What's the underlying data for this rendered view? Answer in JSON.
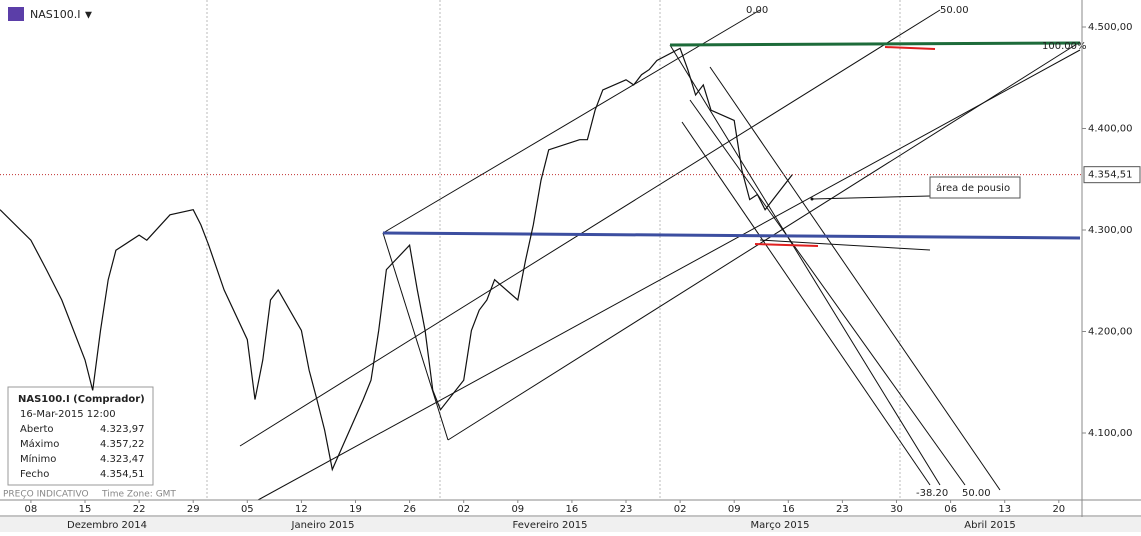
{
  "chart_data": {
    "type": "line",
    "symbol": "NAS100.I",
    "x": [
      "2014-12-04",
      "2014-12-08",
      "2014-12-10",
      "2014-12-12",
      "2014-12-15",
      "2014-12-16",
      "2014-12-17",
      "2014-12-18",
      "2014-12-19",
      "2014-12-22",
      "2014-12-23",
      "2014-12-26",
      "2014-12-29",
      "2014-12-30",
      "2014-12-31",
      "2015-01-02",
      "2015-01-05",
      "2015-01-06",
      "2015-01-07",
      "2015-01-08",
      "2015-01-09",
      "2015-01-12",
      "2015-01-13",
      "2015-01-14",
      "2015-01-15",
      "2015-01-16",
      "2015-01-20",
      "2015-01-21",
      "2015-01-22",
      "2015-01-23",
      "2015-01-26",
      "2015-01-27",
      "2015-01-28",
      "2015-01-29",
      "2015-01-30",
      "2015-02-02",
      "2015-02-03",
      "2015-02-04",
      "2015-02-05",
      "2015-02-06",
      "2015-02-09",
      "2015-02-10",
      "2015-02-11",
      "2015-02-12",
      "2015-02-13",
      "2015-02-17",
      "2015-02-18",
      "2015-02-19",
      "2015-02-20",
      "2015-02-23",
      "2015-02-24",
      "2015-02-25",
      "2015-02-26",
      "2015-02-27",
      "2015-03-02",
      "2015-03-03",
      "2015-03-04",
      "2015-03-05",
      "2015-03-06",
      "2015-03-09",
      "2015-03-10",
      "2015-03-11",
      "2015-03-12",
      "2015-03-13",
      "2015-03-16 12:00"
    ],
    "series": [
      {
        "color": "#111111",
        "values": [
          4320,
          4290,
          4261,
          4231,
          4172,
          4142,
          4201,
          4251,
          4280,
          4295,
          4290,
          4315,
          4320,
          4305,
          4285,
          4241,
          4192,
          4133,
          4172,
          4231,
          4241,
          4201,
          4162,
          4133,
          4103,
          4064,
          4133,
          4152,
          4201,
          4261,
          4285,
          4241,
          4201,
          4142,
          4123,
          4152,
          4201,
          4221,
          4231,
          4251,
          4231,
          4270,
          4305,
          4349,
          4379,
          4389,
          4389,
          4418,
          4438,
          4448,
          4443,
          4453,
          4458,
          4467,
          4479,
          4458,
          4433,
          4443,
          4418,
          4408,
          4359,
          4330,
          4335,
          4320,
          4354.51
        ]
      }
    ],
    "xlim": [
      "2014-12-04",
      "2015-04-23"
    ],
    "xticks": [
      {
        "value": "2014-12-08",
        "label": "08"
      },
      {
        "value": "2014-12-15",
        "label": "15"
      },
      {
        "value": "2014-12-22",
        "label": "22"
      },
      {
        "value": "2014-12-29",
        "label": "29"
      },
      {
        "value": "2015-01-05",
        "label": "05"
      },
      {
        "value": "2015-01-12",
        "label": "12"
      },
      {
        "value": "2015-01-19",
        "label": "19"
      },
      {
        "value": "2015-01-26",
        "label": "26"
      },
      {
        "value": "2015-02-02",
        "label": "02"
      },
      {
        "value": "2015-02-09",
        "label": "09"
      },
      {
        "value": "2015-02-16",
        "label": "16"
      },
      {
        "value": "2015-02-23",
        "label": "23"
      },
      {
        "value": "2015-03-02",
        "label": "02"
      },
      {
        "value": "2015-03-09",
        "label": "09"
      },
      {
        "value": "2015-03-16",
        "label": "16"
      },
      {
        "value": "2015-03-23",
        "label": "23"
      },
      {
        "value": "2015-03-30",
        "label": "30"
      },
      {
        "value": "2015-04-06",
        "label": "06"
      },
      {
        "value": "2015-04-13",
        "label": "13"
      },
      {
        "value": "2015-04-20",
        "label": "20"
      }
    ],
    "months": [
      "Dezembro 2014",
      "Janeiro 2015",
      "Fevereiro 2015",
      "Março 2015",
      "Abril 2015"
    ],
    "ylim": [
      4034,
      4526.6
    ],
    "yticks": [
      {
        "value": 4500,
        "label": "4.500,00"
      },
      {
        "value": 4400,
        "label": "4.400,00"
      },
      {
        "value": 4300,
        "label": "4.300,00"
      },
      {
        "value": 4200,
        "label": "4.200,00"
      },
      {
        "value": 4100,
        "label": "4.100,00"
      }
    ],
    "last_price": {
      "value": 4354.51,
      "label": "4.354,51"
    },
    "annotations": {
      "fan_top_0": "0.00",
      "fan_top_50": "50.00",
      "fan_right": "100.00%",
      "fan_bottom_neg": "-38.20",
      "fan_bottom_50": "50.00",
      "note": "área de pousio"
    },
    "info_box": {
      "title": "NAS100.I (Comprador)",
      "datetime": "16-Mar-2015 12:00",
      "rows": [
        [
          "Aberto",
          "4.323,97"
        ],
        [
          "Máximo",
          "4.357,22"
        ],
        [
          "Mínimo",
          "4.323,47"
        ],
        [
          "Fecho",
          "4.354,51"
        ]
      ]
    },
    "footer": {
      "price_note": "PREÇO INDICATIVO",
      "timezone": "Time Zone: GMT"
    }
  }
}
